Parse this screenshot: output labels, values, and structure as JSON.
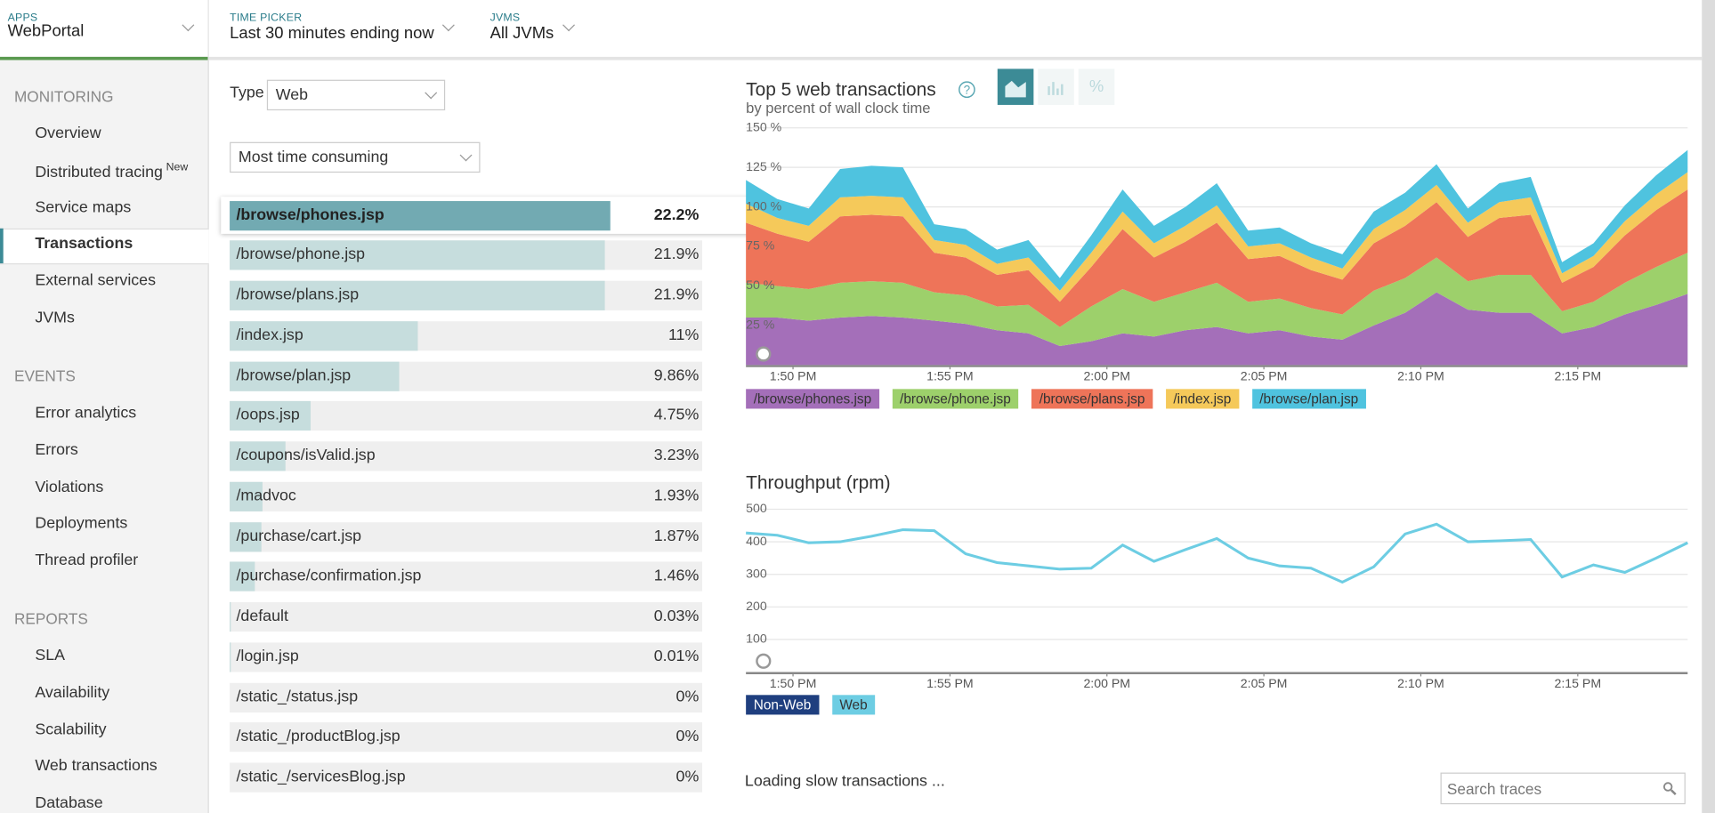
{
  "header": {
    "apps_label": "APPS",
    "app": "WebPortal",
    "time_label": "TIME PICKER",
    "time": "Last 30 minutes ending now",
    "jvms_label": "JVMS",
    "jvms": "All JVMs"
  },
  "sidebar": {
    "sections": [
      {
        "title": "MONITORING",
        "items": [
          {
            "label": "Overview"
          },
          {
            "label": "Distributed tracing",
            "badge": "New"
          },
          {
            "label": "Service maps"
          },
          {
            "label": "Transactions"
          },
          {
            "label": "External services"
          },
          {
            "label": "JVMs"
          }
        ]
      },
      {
        "title": "EVENTS",
        "items": [
          {
            "label": "Error analytics"
          },
          {
            "label": "Errors"
          },
          {
            "label": "Violations"
          },
          {
            "label": "Deployments"
          },
          {
            "label": "Thread profiler"
          }
        ]
      },
      {
        "title": "REPORTS",
        "items": [
          {
            "label": "SLA"
          },
          {
            "label": "Availability"
          },
          {
            "label": "Scalability"
          },
          {
            "label": "Web transactions"
          },
          {
            "label": "Database"
          }
        ]
      }
    ]
  },
  "controls": {
    "type_label": "Type",
    "type": "Web",
    "sort": "Most time consuming"
  },
  "transactions": {
    "names": [
      "/browse/phones.jsp",
      "/browse/phone.jsp",
      "/browse/plans.jsp",
      "/index.jsp",
      "/browse/plan.jsp",
      "/oops.jsp",
      "/coupons/isValid.jsp",
      "/madvoc",
      "/purchase/cart.jsp",
      "/purchase/confirmation.jsp",
      "/default",
      "/login.jsp",
      "/static_/status.jsp",
      "/static_/productBlog.jsp",
      "/static_/servicesBlog.jsp"
    ],
    "values": [
      22.2,
      21.9,
      21.9,
      11,
      9.86,
      4.75,
      3.23,
      1.93,
      1.87,
      1.46,
      0.03,
      0.01,
      0,
      0,
      0
    ],
    "value_labels": [
      "22.2%",
      "21.9%",
      "21.9%",
      "11%",
      "9.86%",
      "4.75%",
      "3.23%",
      "1.93%",
      "1.87%",
      "1.46%",
      "0.03%",
      "0.01%",
      "0%",
      "0%",
      "0%"
    ]
  },
  "charts": [
    {
      "type": "area",
      "stacked": true,
      "title": "Top 5 web transactions",
      "help": "?",
      "percent_toggle": "%",
      "subtitle": "by percent of wall clock time",
      "x": [
        0,
        1,
        2,
        3,
        4,
        5,
        6,
        7,
        8,
        9,
        10,
        11,
        12,
        13,
        14,
        15,
        16,
        17,
        18,
        19,
        20,
        21,
        22,
        23,
        24,
        25,
        26,
        27,
        28,
        29,
        30
      ],
      "xlim": [
        0,
        30
      ],
      "xticks": [
        {
          "value": 1.5,
          "label": "1:50 PM"
        },
        {
          "value": 6.5,
          "label": "1:55 PM"
        },
        {
          "value": 11.5,
          "label": "2:00 PM"
        },
        {
          "value": 16.5,
          "label": "2:05 PM"
        },
        {
          "value": 21.5,
          "label": "2:10 PM"
        },
        {
          "value": 26.5,
          "label": "2:15 PM"
        }
      ],
      "ylim": [
        0,
        150
      ],
      "yticks": [
        {
          "value": 25,
          "label": "25 %"
        },
        {
          "value": 50,
          "label": "50 %"
        },
        {
          "value": 75,
          "label": "75 %"
        },
        {
          "value": 100,
          "label": "100 %"
        },
        {
          "value": 125,
          "label": "125 %"
        },
        {
          "value": 150,
          "label": "150 %"
        }
      ],
      "series": [
        {
          "name": "/browse/phones.jsp",
          "color": "#a46fb9",
          "values": [
            30,
            30,
            28,
            30,
            31,
            30,
            28,
            26,
            22,
            20,
            12,
            15,
            20,
            18,
            22,
            24,
            20,
            22,
            18,
            16,
            25,
            33,
            46,
            35,
            33,
            33,
            20,
            24,
            32,
            38,
            45
          ]
        },
        {
          "name": "/browse/phone.jsp",
          "color": "#9dd06b",
          "values": [
            22,
            20,
            20,
            22,
            22,
            22,
            18,
            18,
            15,
            18,
            12,
            22,
            28,
            22,
            24,
            28,
            20,
            20,
            18,
            16,
            22,
            22,
            22,
            18,
            24,
            24,
            14,
            16,
            20,
            24,
            26
          ]
        },
        {
          "name": "/browse/plans.jsp",
          "color": "#ee7459",
          "values": [
            38,
            33,
            30,
            42,
            42,
            42,
            25,
            24,
            20,
            22,
            16,
            25,
            38,
            28,
            32,
            38,
            27,
            27,
            24,
            22,
            30,
            33,
            35,
            28,
            36,
            38,
            18,
            22,
            30,
            36,
            40
          ]
        },
        {
          "name": "/index.jsp",
          "color": "#f5c95a",
          "values": [
            12,
            10,
            10,
            12,
            12,
            12,
            8,
            8,
            7,
            8,
            7,
            9,
            11,
            9,
            10,
            11,
            8,
            8,
            8,
            7,
            9,
            10,
            11,
            9,
            10,
            11,
            6,
            7,
            9,
            10,
            11
          ]
        },
        {
          "name": "/browse/plan.jsp",
          "color": "#4fc3df",
          "values": [
            15,
            12,
            11,
            18,
            19,
            19,
            10,
            10,
            9,
            11,
            8,
            11,
            14,
            11,
            12,
            14,
            10,
            10,
            9,
            9,
            11,
            11,
            13,
            9,
            12,
            13,
            7,
            8,
            10,
            12,
            14
          ]
        }
      ]
    },
    {
      "type": "line",
      "title": "Throughput (rpm)",
      "x": [
        0,
        1,
        2,
        3,
        4,
        5,
        6,
        7,
        8,
        9,
        10,
        11,
        12,
        13,
        14,
        15,
        16,
        17,
        18,
        19,
        20,
        21,
        22,
        23,
        24,
        25,
        26,
        27,
        28,
        29,
        30
      ],
      "xlim": [
        0,
        30
      ],
      "xticks": [
        {
          "value": 1.5,
          "label": "1:50 PM"
        },
        {
          "value": 6.5,
          "label": "1:55 PM"
        },
        {
          "value": 11.5,
          "label": "2:00 PM"
        },
        {
          "value": 16.5,
          "label": "2:05 PM"
        },
        {
          "value": 21.5,
          "label": "2:10 PM"
        },
        {
          "value": 26.5,
          "label": "2:15 PM"
        }
      ],
      "ylim": [
        0,
        500
      ],
      "yticks": [
        100,
        200,
        300,
        400,
        500
      ],
      "series": [
        {
          "name": "Non-Web",
          "color": "#1f3f7f",
          "values": []
        },
        {
          "name": "Web",
          "color": "#6dcde3",
          "values": [
            427,
            420,
            397,
            400,
            417,
            437,
            434,
            363,
            336,
            326,
            316,
            319,
            390,
            340,
            376,
            410,
            350,
            326,
            319,
            276,
            323,
            424,
            454,
            400,
            403,
            407,
            292,
            329,
            306,
            350,
            397
          ]
        }
      ]
    }
  ],
  "footer": {
    "loading": "Loading slow transactions ...",
    "search_placeholder": "Search traces"
  }
}
